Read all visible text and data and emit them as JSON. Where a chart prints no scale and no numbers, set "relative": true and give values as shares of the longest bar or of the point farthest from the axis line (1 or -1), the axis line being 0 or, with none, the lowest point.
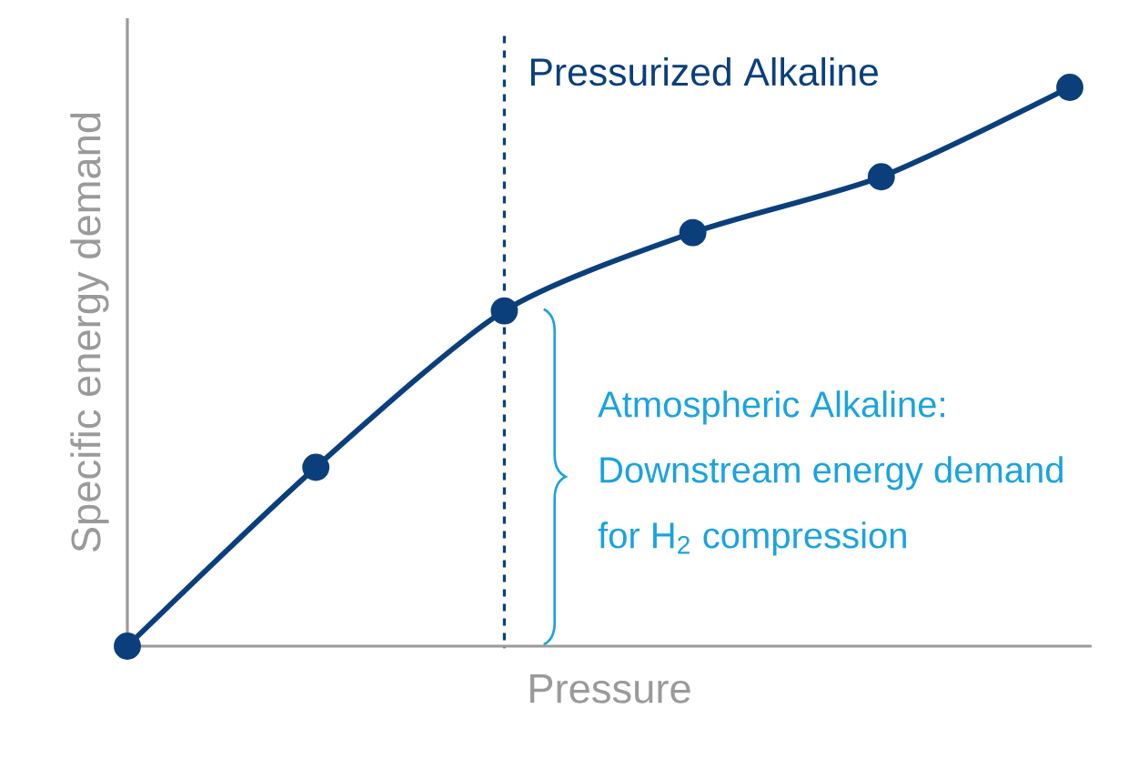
{
  "chart_data": {
    "type": "line",
    "relative": true,
    "xlabel": "Pressure",
    "ylabel": "Specific energy demand",
    "categories": [
      null,
      null,
      null,
      null,
      null,
      null
    ],
    "series": [
      {
        "color": "#0b3f7c",
        "values": [
          0,
          0.32,
          0.6,
          0.74,
          0.84,
          1
        ]
      }
    ],
    "marker": "circle",
    "line_style": "solid",
    "annotations": [
      "Pressurized Alkaline",
      "Atmospheric Alkaline:",
      "Downstream energy demand",
      "for H$_{2}$ compression"
    ]
  }
}
